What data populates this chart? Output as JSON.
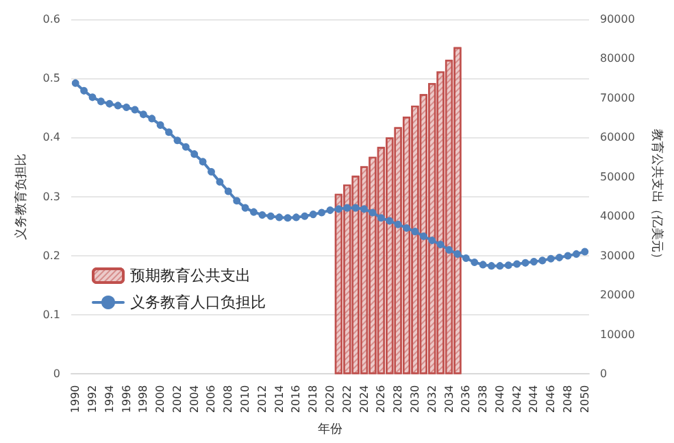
{
  "chart_data": {
    "type": "line",
    "xlabel": "年份",
    "ylabel": "义务教育负担比",
    "y2label": "教育公共支出（亿美元）",
    "categories": [
      "1990",
      null,
      "1992",
      null,
      "1994",
      null,
      "1996",
      null,
      "1998",
      null,
      "2000",
      null,
      "2002",
      null,
      "2004",
      null,
      "2006",
      null,
      "2008",
      null,
      "2010",
      null,
      "2012",
      null,
      "2014",
      null,
      "2016",
      null,
      "2018",
      null,
      "2020",
      null,
      "2022",
      null,
      "2024",
      null,
      "2026",
      null,
      "2028",
      null,
      "2030",
      null,
      "2032",
      null,
      "2034",
      null,
      "2036",
      null,
      "2038",
      null,
      "2040",
      null,
      "2042",
      null,
      "2044",
      null,
      "2046",
      null,
      "2048",
      null,
      "2050"
    ],
    "series": [
      {
        "name": "预期教育公共支出",
        "type": "bar",
        "axis": "y2",
        "color": "#c0504d",
        "values": [
          null,
          null,
          null,
          null,
          null,
          null,
          null,
          null,
          null,
          null,
          null,
          null,
          null,
          null,
          null,
          null,
          null,
          null,
          null,
          null,
          null,
          null,
          null,
          null,
          null,
          null,
          null,
          null,
          null,
          null,
          null,
          45700,
          48100,
          50300,
          52700,
          55100,
          57600,
          60000,
          62600,
          65300,
          68100,
          71000,
          73800,
          76800,
          79700,
          82900,
          null,
          null,
          null,
          null,
          null,
          null,
          null,
          null,
          null,
          null,
          null,
          null,
          null,
          null,
          null
        ]
      },
      {
        "name": "义务教育人口负担比",
        "color": "#4f81bd",
        "values": [
          0.492,
          0.479,
          0.468,
          0.461,
          0.457,
          0.454,
          0.451,
          0.447,
          0.439,
          0.432,
          0.421,
          0.409,
          0.395,
          0.384,
          0.372,
          0.359,
          0.342,
          0.325,
          0.309,
          0.293,
          0.281,
          0.274,
          0.269,
          0.267,
          0.265,
          0.264,
          0.265,
          0.267,
          0.27,
          0.273,
          0.277,
          0.279,
          0.281,
          0.281,
          0.279,
          0.273,
          0.264,
          0.259,
          0.253,
          0.247,
          0.241,
          0.233,
          0.226,
          0.219,
          0.21,
          0.203,
          0.196,
          0.189,
          0.185,
          0.183,
          0.183,
          0.184,
          0.186,
          0.188,
          0.19,
          0.192,
          0.195,
          0.197,
          0.2,
          0.203,
          0.207
        ]
      }
    ],
    "ylim": [
      0,
      0.6
    ],
    "yticks": [
      0,
      0.1,
      0.2,
      0.3,
      0.4,
      0.5,
      0.6
    ],
    "y2lim": [
      0,
      90000
    ],
    "y2ticks": [
      0,
      10000,
      20000,
      30000,
      40000,
      50000,
      60000,
      70000,
      80000,
      90000
    ],
    "grid": "y",
    "legend": "bottom left",
    "marker": "circle",
    "line_style": "solid"
  }
}
